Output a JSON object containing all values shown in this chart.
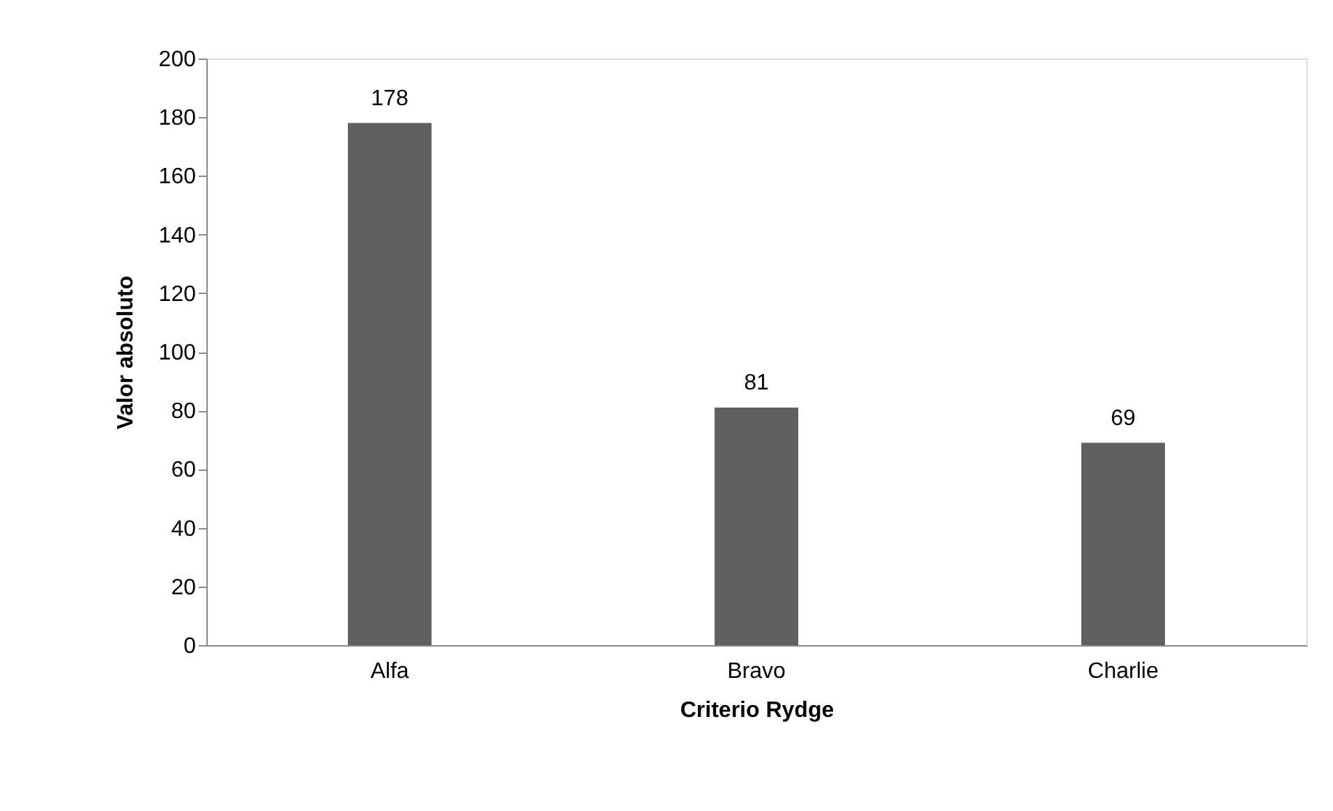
{
  "chart_data": {
    "type": "bar",
    "xlabel": "Criterio Rydge",
    "ylabel": "Valor absoluto",
    "categories": [
      "Alfa",
      "Bravo",
      "Charlie"
    ],
    "values": [
      178,
      81,
      69
    ],
    "color": "#606060",
    "ylim": [
      0,
      200
    ],
    "yticks": [
      0,
      20,
      40,
      60,
      80,
      100,
      120,
      140,
      160,
      180,
      200
    ],
    "data_labels": true,
    "grid": false
  }
}
